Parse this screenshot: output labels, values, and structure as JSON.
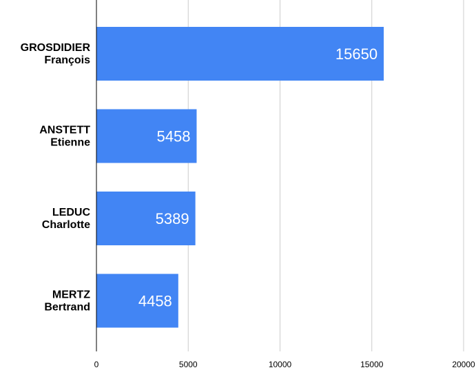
{
  "chart_data": {
    "type": "bar",
    "orientation": "horizontal",
    "categories": [
      [
        "GROSDIDIER",
        "François"
      ],
      [
        "ANSTETT",
        "Etienne"
      ],
      [
        "LEDUC",
        "Charlotte"
      ],
      [
        "MERTZ",
        "Bertrand"
      ]
    ],
    "values": [
      15650,
      5458,
      5389,
      4458
    ],
    "xticks": [
      0,
      5000,
      10000,
      15000,
      20000
    ],
    "xlim": [
      0,
      20000
    ],
    "grid": true,
    "title": "",
    "xlabel": "",
    "ylabel": "",
    "colors": {
      "bar": "#4285f4",
      "grid": "#cccccc",
      "axis": "#000000",
      "bar_label": "#ffffff"
    }
  }
}
